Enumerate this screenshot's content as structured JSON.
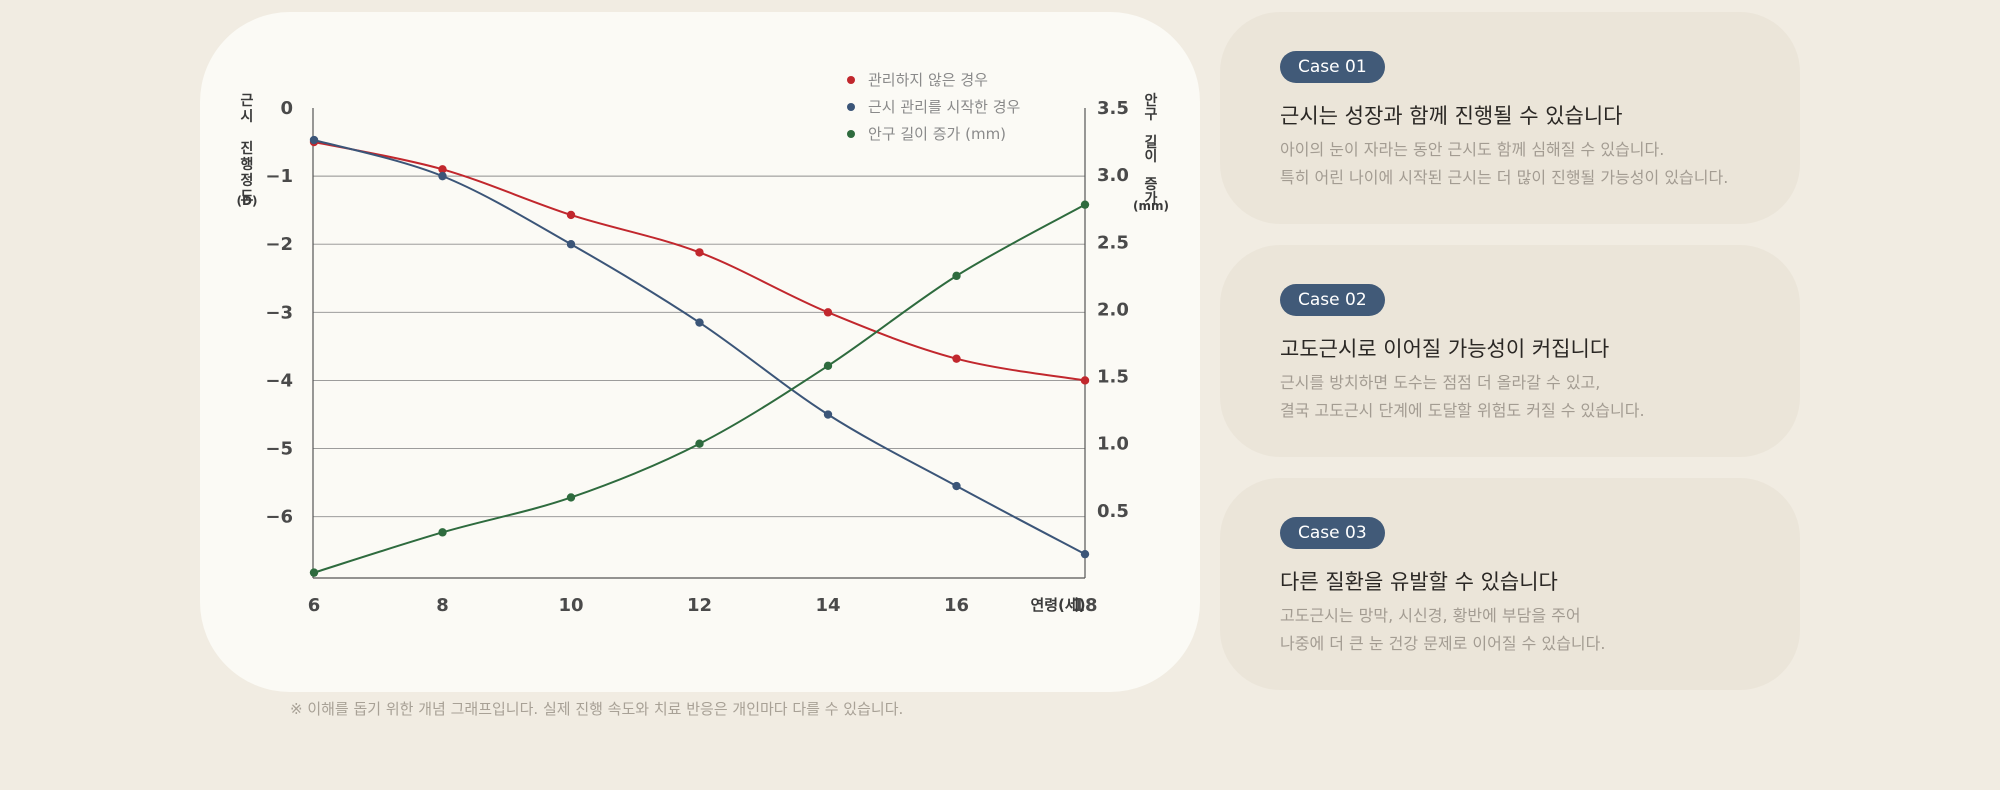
{
  "chart_data": {
    "type": "line",
    "x_label": "연령(세)",
    "x": [
      6,
      8,
      10,
      12,
      14,
      16,
      18
    ],
    "y_left_label_chars": [
      "근",
      "시",
      " ",
      "진",
      "행",
      "정",
      "도"
    ],
    "y_left_unit": "(D)",
    "y_left_ticks": [
      "0",
      "−1",
      "−2",
      "−3",
      "−4",
      "−5",
      "−6"
    ],
    "y_left_range": [
      0,
      -6.9
    ],
    "y_right_label_chars": [
      "안",
      "구",
      " ",
      "길",
      "이",
      " ",
      "증",
      "가"
    ],
    "y_right_unit": "(mm)",
    "y_right_ticks": [
      "3.5",
      "3.0",
      "2.5",
      "2.0",
      "1.5",
      "1.0",
      "0.5"
    ],
    "y_right_range": [
      0,
      3.5
    ],
    "grid": true,
    "legend_position": "top-right",
    "series": [
      {
        "name": "관리하지 않은 경우",
        "axis": "left",
        "color": "#c1272d",
        "values": [
          -0.5,
          -0.9,
          -1.57,
          -2.12,
          -3.0,
          -3.68,
          -4.0
        ]
      },
      {
        "name": "근시 관리를 시작한 경우",
        "axis": "left",
        "color": "#3b5578",
        "values": [
          -0.47,
          -1.0,
          -2.0,
          -3.15,
          -4.5,
          -5.55,
          -6.55
        ]
      },
      {
        "name": "안구 길이 증가 (mm)",
        "axis": "right",
        "color": "#2e6b3e",
        "values": [
          0.04,
          0.34,
          0.6,
          1.0,
          1.58,
          2.25,
          2.78
        ]
      }
    ]
  },
  "note": "※ 이해를 돕기 위한 개념 그래프입니다. 실제 진행 속도와 치료 반응은 개인마다 다를 수 있습니다.",
  "cases": [
    {
      "badge": "Case 01",
      "title": "근시는 성장과 함께 진행될 수 있습니다",
      "desc1": "아이의 눈이 자라는 동안 근시도 함께 심해질 수 있습니다.",
      "desc2": "특히 어린 나이에 시작된 근시는 더 많이 진행될 가능성이 있습니다."
    },
    {
      "badge": "Case 02",
      "title": "고도근시로 이어질 가능성이 커집니다",
      "desc1": "근시를 방치하면 도수는 점점 더 올라갈 수 있고,",
      "desc2": "결국 고도근시 단계에 도달할 위험도 커질 수 있습니다."
    },
    {
      "badge": "Case 03",
      "title": "다른 질환을 유발할 수 있습니다",
      "desc1": "고도근시는 망막, 시신경, 황반에 부담을 주어",
      "desc2": "나중에 더 큰 눈 건강 문제로 이어질 수 있습니다."
    }
  ]
}
